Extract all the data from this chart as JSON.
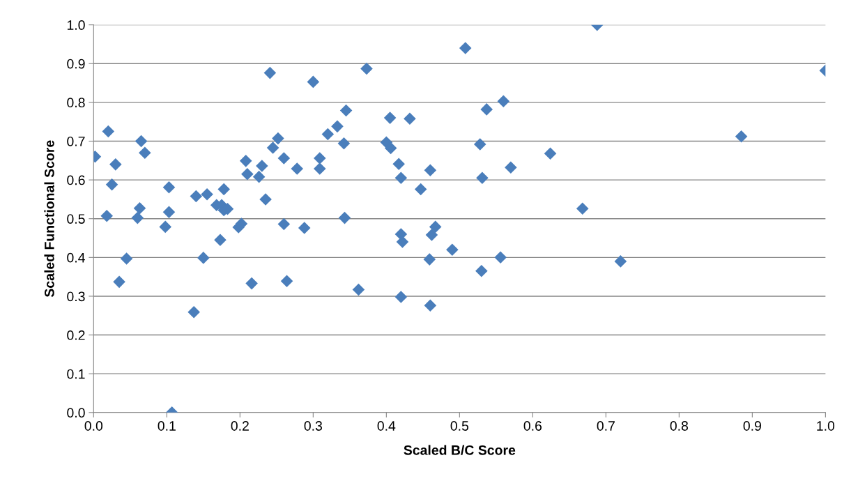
{
  "chart_data": {
    "type": "scatter",
    "xlabel": "Scaled B/C Score",
    "ylabel": "Scaled Functional Score",
    "marker": "diamond",
    "grid": "y",
    "legend": false,
    "xlim": [
      0,
      1
    ],
    "xticks": [
      {
        "value": 0,
        "label": "0.0"
      },
      0.1,
      0.2,
      0.3,
      0.4,
      0.5,
      0.6,
      0.7,
      0.8,
      0.9,
      {
        "value": 1,
        "label": "1.0"
      }
    ],
    "ylim": [
      0,
      1
    ],
    "yticks": [
      {
        "value": 0,
        "label": "0.0"
      },
      0.1,
      0.2,
      0.3,
      0.4,
      0.5,
      0.6,
      0.7,
      0.8,
      0.9,
      {
        "value": 1,
        "label": "1.0"
      }
    ],
    "series": [
      {
        "color": "#4a7ebb",
        "x": [
          0.002,
          0.02,
          0.03,
          0.025,
          0.018,
          0.045,
          0.035,
          0.065,
          0.07,
          0.063,
          0.06,
          0.103,
          0.103,
          0.098,
          0.107,
          0.137,
          0.14,
          0.155,
          0.15,
          0.168,
          0.175,
          0.178,
          0.178,
          0.183,
          0.173,
          0.198,
          0.202,
          0.208,
          0.21,
          0.216,
          0.226,
          0.23,
          0.235,
          0.241,
          0.245,
          0.252,
          0.26,
          0.26,
          0.264,
          0.278,
          0.288,
          0.3,
          0.309,
          0.309,
          0.32,
          0.333,
          0.342,
          0.345,
          0.343,
          0.362,
          0.373,
          0.4,
          0.405,
          0.406,
          0.417,
          0.42,
          0.42,
          0.422,
          0.42,
          0.432,
          0.447,
          0.459,
          0.46,
          0.46,
          0.462,
          0.467,
          0.49,
          0.508,
          0.528,
          0.531,
          0.53,
          0.537,
          0.556,
          0.56,
          0.57,
          0.624,
          0.668,
          0.688,
          0.72,
          0.885,
          1.0
        ],
        "values": [
          0.66,
          0.725,
          0.64,
          0.588,
          0.507,
          0.397,
          0.337,
          0.7,
          0.67,
          0.527,
          0.502,
          0.581,
          0.517,
          0.479,
          0.0,
          0.259,
          0.558,
          0.563,
          0.399,
          0.535,
          0.535,
          0.576,
          0.522,
          0.525,
          0.445,
          0.478,
          0.487,
          0.649,
          0.615,
          0.333,
          0.608,
          0.636,
          0.55,
          0.876,
          0.683,
          0.707,
          0.656,
          0.486,
          0.339,
          0.629,
          0.476,
          0.853,
          0.656,
          0.629,
          0.718,
          0.738,
          0.694,
          0.779,
          0.502,
          0.317,
          0.887,
          0.697,
          0.76,
          0.682,
          0.641,
          0.605,
          0.46,
          0.44,
          0.298,
          0.758,
          0.576,
          0.395,
          0.276,
          0.625,
          0.458,
          0.479,
          0.42,
          0.94,
          0.692,
          0.605,
          0.365,
          0.782,
          0.4,
          0.803,
          0.632,
          0.668,
          0.526,
          1.0,
          0.39,
          0.712,
          0.882
        ]
      }
    ]
  }
}
